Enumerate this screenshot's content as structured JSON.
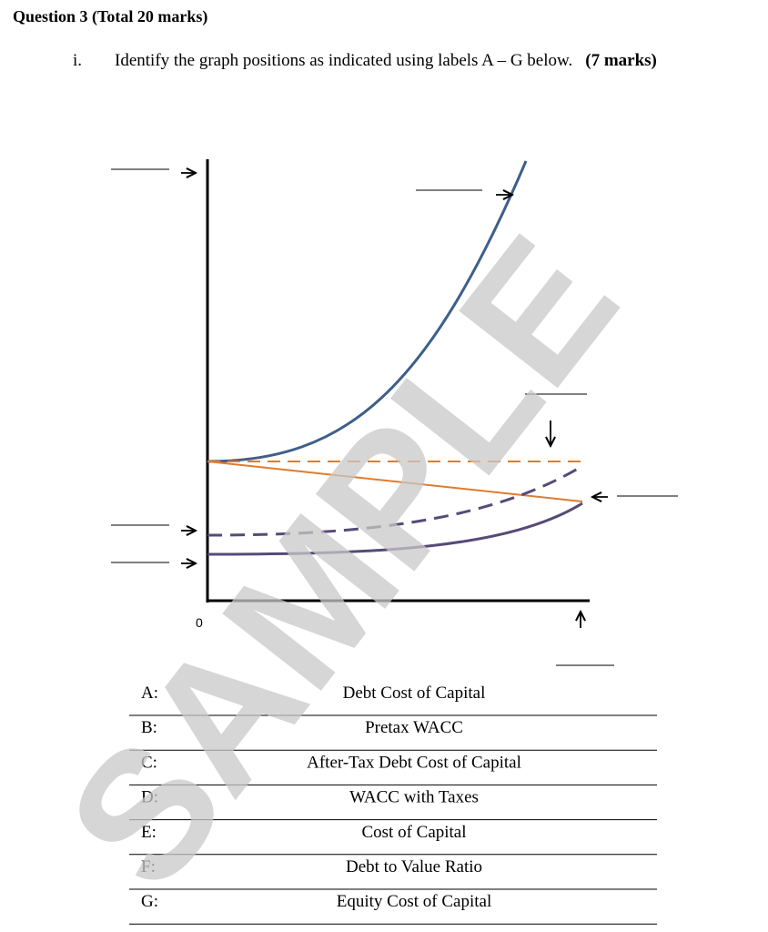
{
  "header": {
    "title": "Question 3 (Total 20 marks)"
  },
  "question": {
    "number": "i.",
    "text": "Identify the graph positions as indicated using labels A – G below.",
    "marks": "(7 marks)"
  },
  "graph": {
    "origin_label": "0"
  },
  "table": {
    "rows": [
      [
        "A:",
        "Debt Cost of Capital"
      ],
      [
        "B:",
        "Pretax WACC"
      ],
      [
        "C:",
        "After-Tax Debt Cost of Capital"
      ],
      [
        "D:",
        "WACC with Taxes"
      ],
      [
        "E:",
        "Cost of Capital"
      ],
      [
        "F:",
        "Debt to Value Ratio"
      ],
      [
        "G:",
        "Equity Cost of Capital"
      ]
    ]
  },
  "watermark": "SAMPLE"
}
